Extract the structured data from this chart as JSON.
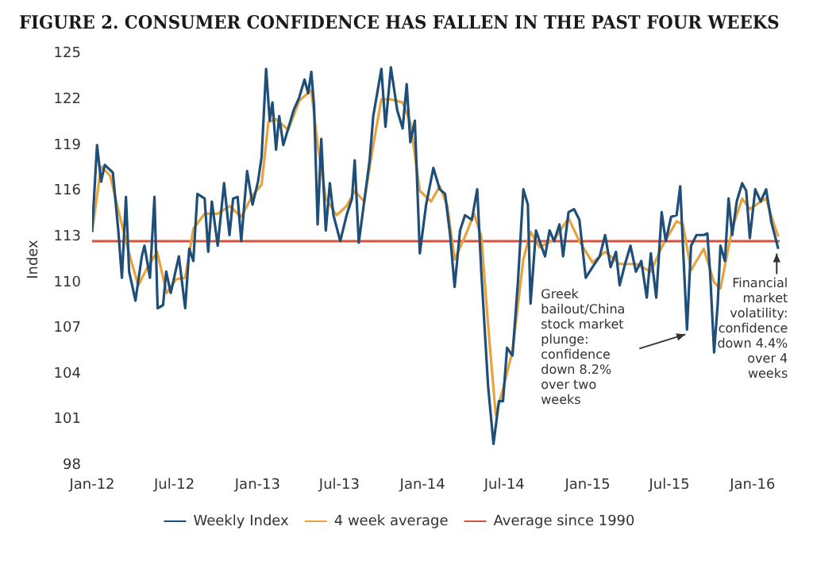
{
  "chart_data": {
    "type": "line",
    "title": "FIGURE 2. CONSUMER CONFIDENCE HAS FALLEN IN THE PAST FOUR WEEKS",
    "ylabel": "Index",
    "xlim": [
      "2012-01-01",
      "2016-03-01"
    ],
    "xticks": [
      {
        "value": "2012-01",
        "label": "Jan-12"
      },
      {
        "value": "2012-07",
        "label": "Jul-12"
      },
      {
        "value": "2013-01",
        "label": "Jan-13"
      },
      {
        "value": "2013-07",
        "label": "Jul-13"
      },
      {
        "value": "2014-01",
        "label": "Jan-14"
      },
      {
        "value": "2014-07",
        "label": "Jul-14"
      },
      {
        "value": "2015-01",
        "label": "Jan-15"
      },
      {
        "value": "2015-07",
        "label": "Jul-15"
      },
      {
        "value": "2016-01",
        "label": "Jan-16"
      }
    ],
    "ylim": [
      98,
      125
    ],
    "yticks": [
      98,
      101,
      104,
      107,
      110,
      113,
      116,
      119,
      122,
      125
    ],
    "grid": false,
    "legend": "bottom",
    "line_style": "solid",
    "marker": "none",
    "series": [
      {
        "name": "Weekly Index",
        "color": "#1f4e79",
        "x": [
          "2012-01-01",
          "2012-01-12",
          "2012-01-21",
          "2012-01-29",
          "2012-02-16",
          "2012-02-28",
          "2012-03-07",
          "2012-03-16",
          "2012-03-23",
          "2012-04-06",
          "2012-04-20",
          "2012-04-26",
          "2012-05-08",
          "2012-05-18",
          "2012-05-25",
          "2012-06-06",
          "2012-06-13",
          "2012-06-23",
          "2012-07-11",
          "2012-07-25",
          "2012-08-03",
          "2012-08-12",
          "2012-08-21",
          "2012-09-06",
          "2012-09-14",
          "2012-09-22",
          "2012-10-05",
          "2012-10-19",
          "2012-10-31",
          "2012-11-08",
          "2012-11-18",
          "2012-11-26",
          "2012-12-09",
          "2012-12-21",
          "2013-01-02",
          "2013-01-10",
          "2013-01-20",
          "2013-01-28",
          "2013-02-03",
          "2013-02-11",
          "2013-02-18",
          "2013-02-27",
          "2013-03-10",
          "2013-03-22",
          "2013-04-03",
          "2013-04-15",
          "2013-04-23",
          "2013-04-30",
          "2013-05-06",
          "2013-05-14",
          "2013-05-22",
          "2013-06-01",
          "2013-06-10",
          "2013-06-18",
          "2013-07-03",
          "2013-07-17",
          "2013-07-29",
          "2013-08-04",
          "2013-08-13",
          "2013-08-25",
          "2013-09-06",
          "2013-09-14",
          "2013-10-02",
          "2013-10-11",
          "2013-10-23",
          "2013-11-06",
          "2013-11-18",
          "2013-11-27",
          "2013-12-05",
          "2013-12-15",
          "2013-12-26",
          "2014-01-09",
          "2014-01-25",
          "2014-02-08",
          "2014-02-20",
          "2014-03-03",
          "2014-03-13",
          "2014-03-25",
          "2014-04-05",
          "2014-04-20",
          "2014-05-02",
          "2014-05-11",
          "2014-05-26",
          "2014-06-07",
          "2014-06-19",
          "2014-06-28",
          "2014-07-07",
          "2014-07-19",
          "2014-07-31",
          "2014-08-12",
          "2014-08-22",
          "2014-08-28",
          "2014-09-09",
          "2014-09-17",
          "2014-09-29",
          "2014-10-09",
          "2014-10-19",
          "2014-10-31",
          "2014-11-08",
          "2014-11-20",
          "2014-12-02",
          "2014-12-14",
          "2014-12-28",
          "2015-01-12",
          "2015-01-28",
          "2015-02-09",
          "2015-02-21",
          "2015-03-05",
          "2015-03-13",
          "2015-03-25",
          "2015-04-06",
          "2015-04-18",
          "2015-04-30",
          "2015-05-12",
          "2015-05-21",
          "2015-06-02",
          "2015-06-14",
          "2015-06-23",
          "2015-07-05",
          "2015-07-17",
          "2015-07-25",
          "2015-07-31",
          "2015-08-09",
          "2015-08-18",
          "2015-08-30",
          "2015-09-15",
          "2015-09-23",
          "2015-09-29",
          "2015-10-08",
          "2015-10-16",
          "2015-10-22",
          "2015-11-01",
          "2015-11-09",
          "2015-11-17",
          "2015-11-27",
          "2015-12-09",
          "2015-12-18",
          "2015-12-26",
          "2016-01-07",
          "2016-01-19",
          "2016-01-31",
          "2016-02-12",
          "2016-02-27"
        ],
        "values": [
          113.3,
          119.0,
          116.6,
          117.7,
          117.2,
          113.4,
          110.3,
          115.6,
          110.7,
          108.8,
          111.7,
          112.4,
          110.3,
          115.6,
          108.3,
          108.5,
          110.7,
          109.3,
          111.7,
          108.3,
          112.2,
          111.4,
          115.8,
          115.5,
          112.0,
          115.3,
          112.4,
          116.5,
          113.1,
          115.5,
          115.6,
          112.7,
          117.3,
          115.1,
          116.6,
          118.2,
          124.0,
          120.6,
          121.8,
          118.7,
          120.9,
          119.0,
          120.1,
          121.3,
          122.1,
          123.3,
          122.4,
          123.8,
          121.6,
          113.8,
          119.4,
          113.4,
          116.5,
          114.4,
          112.7,
          114.4,
          115.5,
          118.0,
          112.6,
          115.3,
          118.0,
          120.9,
          124.0,
          120.2,
          124.1,
          121.3,
          120.1,
          123.0,
          119.2,
          120.6,
          111.9,
          115.1,
          117.5,
          116.1,
          115.8,
          113.1,
          109.7,
          113.4,
          114.4,
          114.1,
          116.1,
          110.7,
          103.2,
          99.4,
          102.2,
          102.2,
          105.7,
          105.2,
          110.0,
          116.1,
          115.1,
          108.6,
          113.4,
          112.7,
          111.7,
          113.4,
          112.7,
          113.8,
          111.7,
          114.6,
          114.8,
          114.1,
          110.3,
          111.0,
          111.7,
          113.1,
          111.0,
          112.0,
          109.8,
          111.2,
          112.4,
          110.7,
          111.4,
          109.0,
          111.9,
          109.0,
          114.6,
          112.7,
          114.3,
          114.4,
          116.3,
          112.4,
          106.9,
          112.4,
          113.1,
          113.1,
          113.2,
          110.7,
          105.4,
          108.6,
          112.4,
          111.4,
          115.5,
          113.1,
          115.3,
          116.5,
          116.0,
          112.9,
          116.1,
          115.3,
          116.1,
          113.9,
          112.2
        ]
      },
      {
        "name": "4 week average",
        "color": "#e8a33d",
        "x": [
          "2012-01-01",
          "2012-01-21",
          "2012-02-10",
          "2012-03-01",
          "2012-03-22",
          "2012-04-12",
          "2012-05-03",
          "2012-05-24",
          "2012-06-14",
          "2012-07-05",
          "2012-07-25",
          "2012-08-12",
          "2012-09-06",
          "2012-10-05",
          "2012-10-31",
          "2012-11-26",
          "2012-12-21",
          "2013-01-10",
          "2013-01-25",
          "2013-02-11",
          "2013-03-10",
          "2013-04-03",
          "2013-04-30",
          "2013-05-14",
          "2013-06-01",
          "2013-06-25",
          "2013-07-17",
          "2013-08-04",
          "2013-08-25",
          "2013-09-14",
          "2013-10-02",
          "2013-10-23",
          "2013-11-18",
          "2013-12-05",
          "2013-12-26",
          "2014-01-20",
          "2014-02-08",
          "2014-02-25",
          "2014-03-13",
          "2014-04-05",
          "2014-04-25",
          "2014-05-11",
          "2014-05-28",
          "2014-06-12",
          "2014-06-28",
          "2014-07-19",
          "2014-08-12",
          "2014-08-28",
          "2014-09-17",
          "2014-10-19",
          "2014-11-20",
          "2014-12-14",
          "2015-01-12",
          "2015-02-09",
          "2015-03-13",
          "2015-04-18",
          "2015-05-21",
          "2015-06-14",
          "2015-07-17",
          "2015-07-31",
          "2015-08-18",
          "2015-09-15",
          "2015-10-08",
          "2015-10-22",
          "2015-11-17",
          "2015-12-09",
          "2015-12-26",
          "2016-01-19",
          "2016-01-31",
          "2016-02-12",
          "2016-02-27"
        ],
        "values": [
          113.3,
          117.6,
          117.0,
          114.5,
          112.0,
          109.8,
          111.0,
          112.0,
          109.3,
          110.2,
          110.3,
          113.5,
          114.5,
          114.5,
          115.0,
          114.3,
          115.7,
          116.4,
          120.5,
          120.7,
          120.0,
          121.9,
          122.6,
          119.0,
          115.5,
          114.4,
          115.0,
          116.0,
          115.3,
          119.0,
          122.0,
          122.0,
          121.8,
          120.5,
          116.0,
          115.3,
          116.3,
          115.0,
          111.5,
          113.0,
          114.5,
          113.0,
          106.5,
          101.3,
          103.0,
          105.5,
          111.5,
          113.3,
          112.3,
          112.8,
          114.2,
          112.7,
          111.3,
          112.0,
          111.2,
          111.2,
          110.7,
          112.3,
          114.0,
          113.8,
          110.8,
          112.2,
          110.0,
          109.6,
          113.5,
          115.5,
          114.8,
          115.3,
          115.5,
          114.3,
          113.0
        ]
      }
    ],
    "ref_lines": [
      {
        "axis": "y",
        "value": 112.7,
        "label": "Average since 1990",
        "color": "#d9533b",
        "line_style": "solid"
      }
    ],
    "annotations": [
      {
        "text": "Greek bailout/China stock market plunge: confidence down 8.2% over two weeks",
        "x": "2015-08-09",
        "y": 106.9
      },
      {
        "text": "Financial market volatility: confidence down 4.4% over 4 weeks",
        "x": "2016-02-27",
        "y": 112.2
      }
    ]
  }
}
